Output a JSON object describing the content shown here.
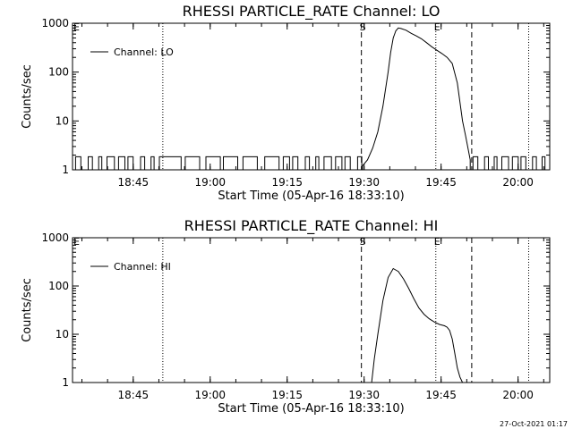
{
  "timestamp": "27-Oct-2021 01:17",
  "chart_data": [
    {
      "type": "line",
      "title": "RHESSI PARTICLE_RATE Channel: LO",
      "xlabel": "Start Time (05-Apr-16 18:33:10)",
      "ylabel": "Counts/sec",
      "x_unit": "minutes since 18:33:10",
      "xlim": [
        0,
        93
      ],
      "ylim": [
        1,
        1000
      ],
      "yscale": "log",
      "x_ticks": [
        {
          "label": "18:45",
          "x": 11.83
        },
        {
          "label": "19:00",
          "x": 26.83
        },
        {
          "label": "19:15",
          "x": 41.83
        },
        {
          "label": "19:30",
          "x": 56.83
        },
        {
          "label": "19:45",
          "x": 71.83
        },
        {
          "label": "20:00",
          "x": 86.83
        }
      ],
      "y_ticks": [
        {
          "label": "1",
          "y": 1
        },
        {
          "label": "10",
          "y": 10
        },
        {
          "label": "100",
          "y": 100
        },
        {
          "label": "1000",
          "y": 1000
        }
      ],
      "legend": {
        "label": "Channel: LO",
        "position": "top-left"
      },
      "markers": [
        {
          "x": 56.3,
          "style": "dashed",
          "label": "S"
        },
        {
          "x": 77.8,
          "style": "dashed",
          "label": ""
        },
        {
          "x": 17.6,
          "style": "dotted",
          "label": ""
        },
        {
          "x": 70.8,
          "style": "dotted",
          "label": "E"
        },
        {
          "x": 88.9,
          "style": "dotted",
          "label": ""
        }
      ],
      "series": [
        {
          "name": "Channel: LO",
          "noise": {
            "from": 0,
            "to": 56.5,
            "low": 1,
            "high": 1.85,
            "toggle_step": 0.6
          },
          "x": [
            56.5,
            57.5,
            58.5,
            59.5,
            60.5,
            61.5,
            62.0,
            62.5,
            63.0,
            63.5,
            64.0,
            65.0,
            66.0,
            67.0,
            68.0,
            69.0,
            70.0,
            71.0,
            72.0,
            73.0,
            74.0,
            75.0,
            76.0,
            76.6,
            77.5
          ],
          "y": [
            1.2,
            1.6,
            2.8,
            6,
            20,
            100,
            250,
            500,
            700,
            800,
            780,
            720,
            620,
            550,
            480,
            400,
            330,
            280,
            240,
            200,
            150,
            60,
            10,
            5,
            1.6
          ],
          "tail": {
            "from": 77.5,
            "to": 93,
            "low": 1,
            "high": 1.85,
            "toggle_step": 0.55
          }
        }
      ]
    },
    {
      "type": "line",
      "title": "RHESSI PARTICLE_RATE Channel: HI",
      "xlabel": "Start Time (05-Apr-16 18:33:10)",
      "ylabel": "Counts/sec",
      "x_unit": "minutes since 18:33:10",
      "xlim": [
        0,
        93
      ],
      "ylim": [
        1,
        1000
      ],
      "yscale": "log",
      "x_ticks": [
        {
          "label": "18:45",
          "x": 11.83
        },
        {
          "label": "19:00",
          "x": 26.83
        },
        {
          "label": "19:15",
          "x": 41.83
        },
        {
          "label": "19:30",
          "x": 56.83
        },
        {
          "label": "19:45",
          "x": 71.83
        },
        {
          "label": "20:00",
          "x": 86.83
        }
      ],
      "y_ticks": [
        {
          "label": "1",
          "y": 1
        },
        {
          "label": "10",
          "y": 10
        },
        {
          "label": "100",
          "y": 100
        },
        {
          "label": "1000",
          "y": 1000
        }
      ],
      "legend": {
        "label": "Channel: HI",
        "position": "top-left"
      },
      "markers": [
        {
          "x": 56.3,
          "style": "dashed",
          "label": "S"
        },
        {
          "x": 77.8,
          "style": "dashed",
          "label": ""
        },
        {
          "x": 17.6,
          "style": "dotted",
          "label": ""
        },
        {
          "x": 70.8,
          "style": "dotted",
          "label": "E"
        },
        {
          "x": 88.9,
          "style": "dotted",
          "label": ""
        }
      ],
      "series": [
        {
          "name": "Channel: HI",
          "x": [
            58.3,
            58.8,
            59.5,
            60.5,
            61.5,
            62.5,
            63.5,
            64.5,
            65.5,
            66.5,
            67.5,
            68.5,
            69.5,
            70.5,
            71.5,
            72.5,
            73.0,
            73.5,
            74.0,
            74.5,
            75.0,
            75.5,
            76.0
          ],
          "y": [
            1,
            3,
            10,
            50,
            150,
            230,
            200,
            140,
            90,
            55,
            35,
            26,
            21,
            18,
            16,
            15,
            14,
            12,
            8,
            4,
            2,
            1.3,
            1
          ]
        }
      ]
    }
  ]
}
